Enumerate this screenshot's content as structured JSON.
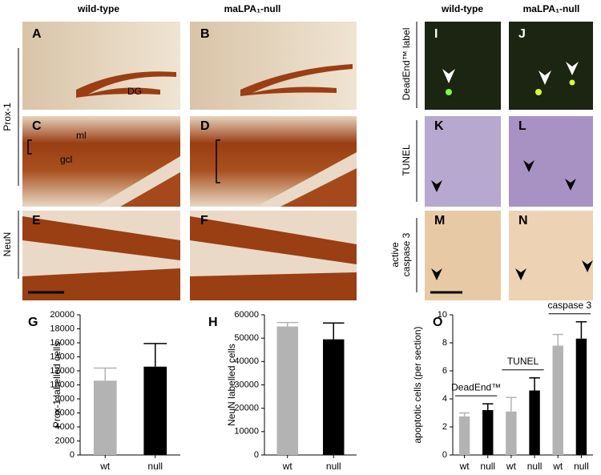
{
  "headers": {
    "left_wt": "wild-type",
    "left_null": "maLPA₁-null",
    "right_wt": "wild-type",
    "right_null": "maLPA₁-null"
  },
  "row_labels": {
    "prox1": "Prox-1",
    "neun": "NeuN",
    "deadend": "DeadEnd™ label",
    "tunel": "TUNEL",
    "caspase_1": "active",
    "caspase_2": "caspase 3"
  },
  "panels": [
    "A",
    "B",
    "C",
    "D",
    "E",
    "F",
    "I",
    "J",
    "K",
    "L",
    "M",
    "N"
  ],
  "annotations": {
    "dg": "DG",
    "ml": "ml",
    "gcl": "gcl"
  },
  "chart_data": [
    {
      "type": "bar",
      "panel": "G",
      "y_label": "Prox-1 labelled cells",
      "categories": [
        "wt",
        "null"
      ],
      "values": [
        10600,
        12600
      ],
      "errors": [
        1800,
        3300
      ],
      "colors": [
        "#b3b3b3",
        "#000000"
      ],
      "ylim": [
        0,
        20000
      ],
      "yticks": [
        0,
        2000,
        4000,
        6000,
        8000,
        10000,
        12000,
        14000,
        16000,
        18000,
        20000
      ]
    },
    {
      "type": "bar",
      "panel": "H",
      "y_label": "NeuN labelled cells",
      "categories": [
        "wt",
        "null"
      ],
      "values": [
        55000,
        49500
      ],
      "errors": [
        1700,
        7000
      ],
      "colors": [
        "#b3b3b3",
        "#000000"
      ],
      "ylim": [
        0,
        60000
      ],
      "yticks": [
        0,
        10000,
        20000,
        30000,
        40000,
        50000,
        60000
      ]
    },
    {
      "type": "bar",
      "panel": "O",
      "y_label": "apoptotic cells  (per section)",
      "colors": [
        "#b3b3b3",
        "#000000"
      ],
      "ylim": [
        0,
        10
      ],
      "yticks": [
        0,
        2,
        4,
        6,
        8,
        10
      ],
      "groups": [
        {
          "name": "DeadEnd™",
          "categories": [
            "wt",
            "null"
          ],
          "values": [
            2.75,
            3.2
          ],
          "errors": [
            0.25,
            0.45
          ]
        },
        {
          "name": "TUNEL",
          "categories": [
            "wt",
            "null"
          ],
          "values": [
            3.1,
            4.6
          ],
          "errors": [
            1.0,
            0.9
          ]
        },
        {
          "name": "caspase 3",
          "categories": [
            "wt",
            "null"
          ],
          "values": [
            7.8,
            8.3
          ],
          "errors": [
            0.8,
            1.2
          ]
        }
      ]
    }
  ]
}
